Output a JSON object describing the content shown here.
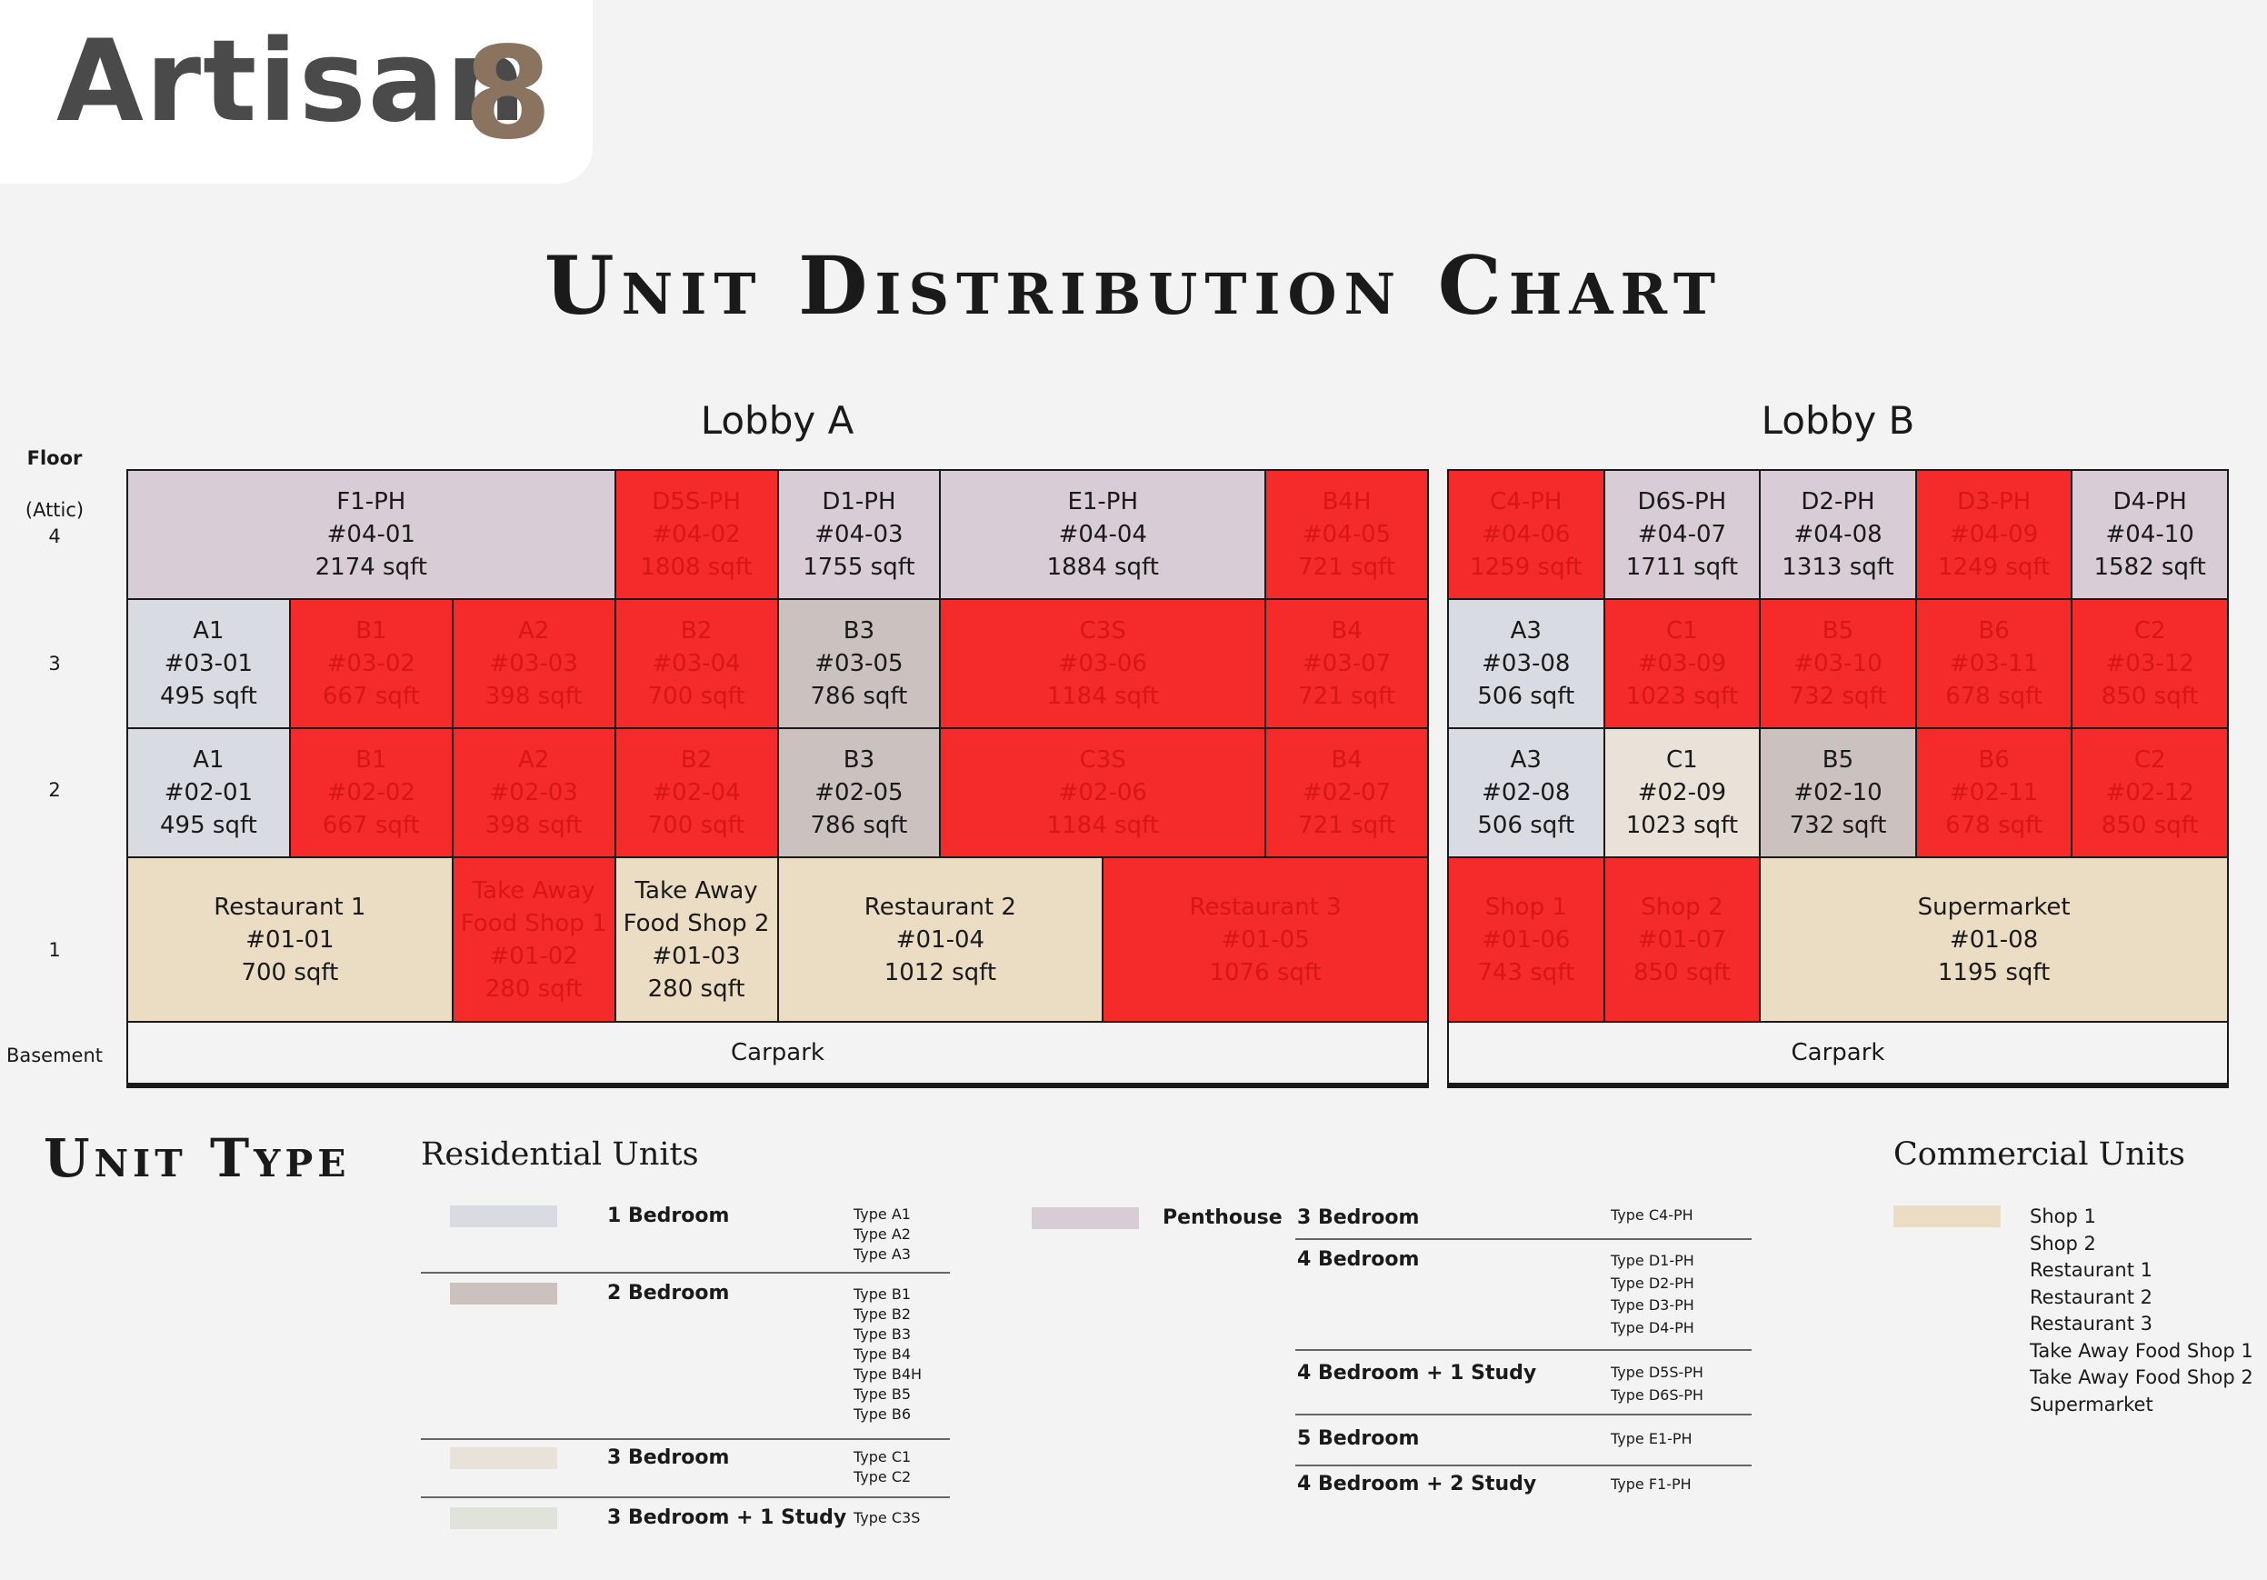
{
  "brand": {
    "name": "Artisan",
    "mark": "8"
  },
  "title": "Unit Distribution Chart",
  "floors": {
    "header": "Floor",
    "f4": [
      "(Attic)",
      "4"
    ],
    "f3": "3",
    "f2": "2",
    "f1": "1",
    "basement": "Basement"
  },
  "lobbies": {
    "a": {
      "name": "Lobby A",
      "f4": [
        {
          "type": "F1-PH",
          "unit": "#04-01",
          "area": "2174 sqft",
          "sold": false
        },
        {
          "type": "D5S-PH",
          "unit": "#04-02",
          "area": "1808 sqft",
          "sold": true
        },
        {
          "type": "D1-PH",
          "unit": "#04-03",
          "area": "1755 sqft",
          "sold": false
        },
        {
          "type": "E1-PH",
          "unit": "#04-04",
          "area": "1884 sqft",
          "sold": false
        },
        {
          "type": "B4H",
          "unit": "#04-05",
          "area": "721 sqft",
          "sold": true
        }
      ],
      "f3": [
        {
          "type": "A1",
          "unit": "#03-01",
          "area": "495 sqft",
          "sold": false
        },
        {
          "type": "B1",
          "unit": "#03-02",
          "area": "667 sqft",
          "sold": true
        },
        {
          "type": "A2",
          "unit": "#03-03",
          "area": "398 sqft",
          "sold": true
        },
        {
          "type": "B2",
          "unit": "#03-04",
          "area": "700 sqft",
          "sold": true
        },
        {
          "type": "B3",
          "unit": "#03-05",
          "area": "786 sqft",
          "sold": false
        },
        {
          "type": "C3S",
          "unit": "#03-06",
          "area": "1184 sqft",
          "sold": true
        },
        {
          "type": "B4",
          "unit": "#03-07",
          "area": "721 sqft",
          "sold": true
        }
      ],
      "f2": [
        {
          "type": "A1",
          "unit": "#02-01",
          "area": "495 sqft",
          "sold": false
        },
        {
          "type": "B1",
          "unit": "#02-02",
          "area": "667 sqft",
          "sold": true
        },
        {
          "type": "A2",
          "unit": "#02-03",
          "area": "398 sqft",
          "sold": true
        },
        {
          "type": "B2",
          "unit": "#02-04",
          "area": "700 sqft",
          "sold": true
        },
        {
          "type": "B3",
          "unit": "#02-05",
          "area": "786 sqft",
          "sold": false
        },
        {
          "type": "C3S",
          "unit": "#02-06",
          "area": "1184 sqft",
          "sold": true
        },
        {
          "type": "B4",
          "unit": "#02-07",
          "area": "721 sqft",
          "sold": true
        }
      ],
      "f1": [
        {
          "name": [
            "Restaurant 1"
          ],
          "unit": "#01-01",
          "area": "700 sqft",
          "sold": false
        },
        {
          "name": [
            "Take Away",
            "Food Shop 1"
          ],
          "unit": "#01-02",
          "area": "280 sqft",
          "sold": true
        },
        {
          "name": [
            "Take Away",
            "Food Shop 2"
          ],
          "unit": "#01-03",
          "area": "280 sqft",
          "sold": false
        },
        {
          "name": [
            "Restaurant 2"
          ],
          "unit": "#01-04",
          "area": "1012 sqft",
          "sold": false
        },
        {
          "name": [
            "Restaurant 3"
          ],
          "unit": "#01-05",
          "area": "1076 sqft",
          "sold": true
        }
      ],
      "basement": "Carpark"
    },
    "b": {
      "name": "Lobby B",
      "f4": [
        {
          "type": "C4-PH",
          "unit": "#04-06",
          "area": "1259 sqft",
          "sold": true
        },
        {
          "type": "D6S-PH",
          "unit": "#04-07",
          "area": "1711 sqft",
          "sold": false
        },
        {
          "type": "D2-PH",
          "unit": "#04-08",
          "area": "1313 sqft",
          "sold": false
        },
        {
          "type": "D3-PH",
          "unit": "#04-09",
          "area": "1249 sqft",
          "sold": true
        },
        {
          "type": "D4-PH",
          "unit": "#04-10",
          "area": "1582 sqft",
          "sold": false
        }
      ],
      "f3": [
        {
          "type": "A3",
          "unit": "#03-08",
          "area": "506 sqft",
          "sold": false
        },
        {
          "type": "C1",
          "unit": "#03-09",
          "area": "1023 sqft",
          "sold": true
        },
        {
          "type": "B5",
          "unit": "#03-10",
          "area": "732 sqft",
          "sold": true
        },
        {
          "type": "B6",
          "unit": "#03-11",
          "area": "678 sqft",
          "sold": true
        },
        {
          "type": "C2",
          "unit": "#03-12",
          "area": "850 sqft",
          "sold": true
        }
      ],
      "f2": [
        {
          "type": "A3",
          "unit": "#02-08",
          "area": "506 sqft",
          "sold": false
        },
        {
          "type": "C1",
          "unit": "#02-09",
          "area": "1023 sqft",
          "sold": false
        },
        {
          "type": "B5",
          "unit": "#02-10",
          "area": "732 sqft",
          "sold": false
        },
        {
          "type": "B6",
          "unit": "#02-11",
          "area": "678 sqft",
          "sold": true
        },
        {
          "type": "C2",
          "unit": "#02-12",
          "area": "850 sqft",
          "sold": true
        }
      ],
      "f1": [
        {
          "name": [
            "Shop 1"
          ],
          "unit": "#01-06",
          "area": "743 sqft",
          "sold": true
        },
        {
          "name": [
            "Shop 2"
          ],
          "unit": "#01-07",
          "area": "850 sqft",
          "sold": true
        },
        {
          "name": [
            "Supermarket"
          ],
          "unit": "#01-08",
          "area": "1195 sqft",
          "sold": false
        }
      ],
      "basement": "Carpark"
    }
  },
  "legend": {
    "title": "Unit Type",
    "residential_title": "Residential Units",
    "commercial_title": "Commercial Units",
    "colors": {
      "sold": "#f52a2a",
      "penthouse": "#d8ccd6",
      "bedroom1": "#d8dbe1",
      "bedroom2": "#cbc2c0",
      "bedroom3": "#e9e2d8",
      "bedroom3study": "#dfe3da",
      "commercial": "#ebdcc4"
    },
    "residential": [
      {
        "label": "1 Bedroom",
        "types": [
          "Type A1",
          "Type A2",
          "Type A3"
        ]
      },
      {
        "label": "2 Bedroom",
        "types": [
          "Type B1",
          "Type B2",
          "Type B3",
          "Type B4",
          "Type B4H",
          "Type B5",
          "Type B6"
        ]
      },
      {
        "label": "3 Bedroom",
        "types": [
          "Type C1",
          "Type C2"
        ]
      },
      {
        "label": "3 Bedroom + 1 Study",
        "types": [
          "Type C3S"
        ]
      }
    ],
    "penthouse": {
      "label": "Penthouse",
      "rows": [
        {
          "label": "3 Bedroom",
          "types": [
            "Type C4-PH"
          ]
        },
        {
          "label": "4 Bedroom",
          "types": [
            "Type D1-PH",
            "Type D2-PH",
            "Type D3-PH",
            "Type D4-PH"
          ]
        },
        {
          "label": "4 Bedroom + 1 Study",
          "types": [
            "Type D5S-PH",
            "Type D6S-PH"
          ]
        },
        {
          "label": "5 Bedroom",
          "types": [
            "Type E1-PH"
          ]
        },
        {
          "label": "4 Bedroom + 2 Study",
          "types": [
            "Type F1-PH"
          ]
        }
      ]
    },
    "commercial": [
      "Shop 1",
      "Shop 2",
      "Restaurant 1",
      "Restaurant 2",
      "Restaurant 3",
      "Take Away Food Shop 1",
      "Take Away Food Shop 2",
      "Supermarket"
    ]
  }
}
